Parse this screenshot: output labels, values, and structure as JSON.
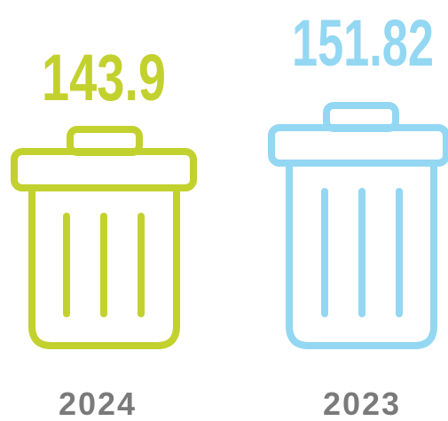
{
  "items": [
    {
      "value": 143.9,
      "label": "2024",
      "color": "#c3d12e"
    },
    {
      "value": 151.82,
      "label": "2023",
      "color": "#93d7f3"
    }
  ]
}
